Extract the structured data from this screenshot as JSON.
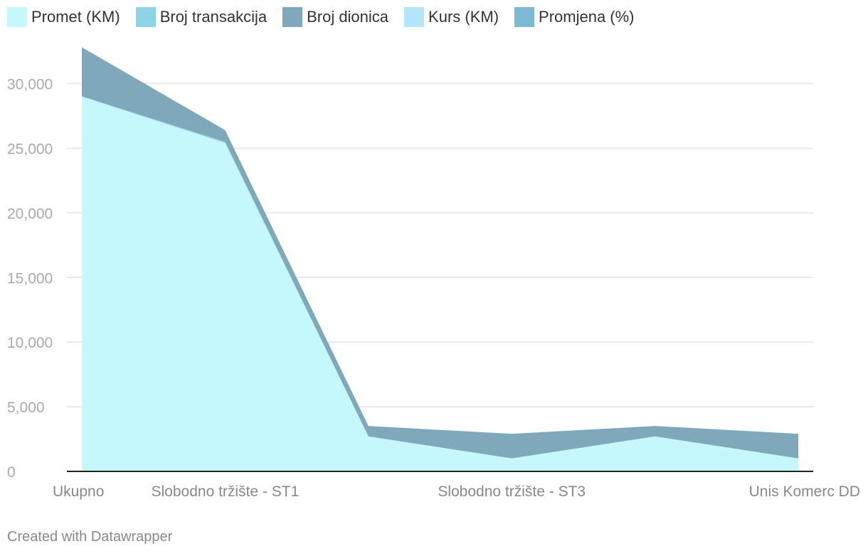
{
  "chart_data": {
    "type": "area",
    "stacked": true,
    "categories": [
      "Ukupno",
      "Slobodno tržište - ST1",
      "",
      "Slobodno tržište - ST3",
      "",
      "Unis Komerc DD"
    ],
    "series": [
      {
        "name": "Promet (KM)",
        "color": "#c4f8fd",
        "values": [
          29000,
          25400,
          2700,
          1000,
          2700,
          1000
        ]
      },
      {
        "name": "Broj transakcija",
        "color": "#8ed2e6",
        "values": [
          10,
          100,
          10,
          10,
          10,
          10
        ]
      },
      {
        "name": "Broj dionica",
        "color": "#7fa9ba",
        "values": [
          3800,
          900,
          800,
          1900,
          800,
          1900
        ]
      },
      {
        "name": "Kurs (KM)",
        "color": "#b4e7fa",
        "values": [
          5,
          5,
          5,
          5,
          5,
          5
        ]
      },
      {
        "name": "Promjena (%)",
        "color": "#7bbad0",
        "values": [
          0,
          0,
          0,
          0,
          0,
          0
        ]
      }
    ],
    "yticks": [
      0,
      5000,
      10000,
      15000,
      20000,
      25000,
      30000
    ],
    "ylim": [
      0,
      33000
    ],
    "grid": true,
    "legend_position": "top"
  },
  "credit": "Created with Datawrapper"
}
